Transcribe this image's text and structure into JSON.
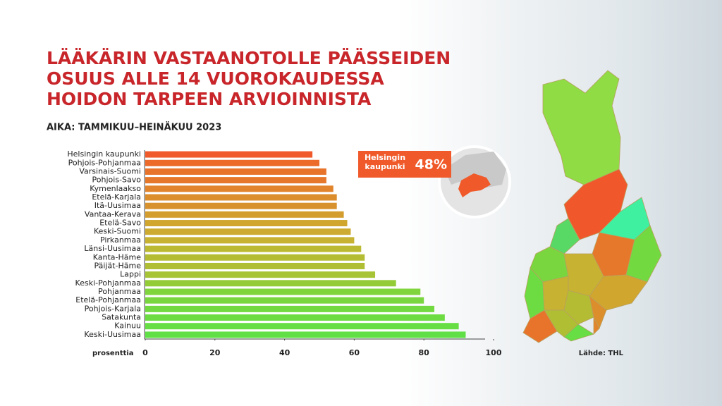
{
  "chart_data": {
    "type": "hbar",
    "title": [
      "LÄÄKÄRIN VASTAANOTOLLE PÄÄSSEIDEN",
      "OSUUS ALLE 14 VUOROKAUDESSA",
      "HOIDON TARPEEN ARVIOINNISTA"
    ],
    "subtitle": "AIKA: TAMMIKUU–HEINÄKUU 2023",
    "x_label": "prosenttia",
    "source": "Lähde: THL",
    "categories": [
      "Helsingin kaupunki",
      "Pohjois-Pohjanmaa",
      "Varsinais-Suomi",
      "Pohjois-Savo",
      "Kymenlaakso",
      "Etelä-Karjala",
      "Itä-Uusimaa",
      "Vantaa-Kerava",
      "Etelä-Savo",
      "Keski-Suomi",
      "Pirkanmaa",
      "Länsi-Uusimaa",
      "Kanta-Häme",
      "Päijät-Häme",
      "Lappi",
      "Keski-Pohjanmaa",
      "Pohjanmaa",
      "Etelä-Pohjanmaa",
      "Pohjois-Karjala",
      "Satakunta",
      "Kainuu",
      "Keski-Uusimaa"
    ],
    "values": [
      48,
      50,
      52,
      52,
      54,
      55,
      55,
      57,
      58,
      59,
      60,
      62,
      63,
      63,
      66,
      72,
      79,
      80,
      83,
      86,
      90,
      92
    ],
    "value_labels": [
      "48%",
      null,
      null,
      null,
      null,
      null,
      null,
      null,
      null,
      null,
      null,
      null,
      null,
      null,
      null,
      null,
      null,
      null,
      null,
      null,
      null,
      null
    ],
    "colors": [
      "#f05a2a",
      "#ec6a2a",
      "#e8742b",
      "#e6782b",
      "#e2842c",
      "#dc8e2d",
      "#d8922d",
      "#d49e2e",
      "#d0a62f",
      "#ccab30",
      "#c8b231",
      "#bcba32",
      "#b4bc33",
      "#b0be34",
      "#a6c436",
      "#94cc38",
      "#80d43c",
      "#7ad63e",
      "#72da40",
      "#6ddc42",
      "#66de44",
      "#60e046"
    ],
    "callout_color": "#f05a2a",
    "xlim": [
      0,
      100
    ],
    "xticks": [
      0,
      20,
      40,
      60,
      80,
      100
    ]
  }
}
